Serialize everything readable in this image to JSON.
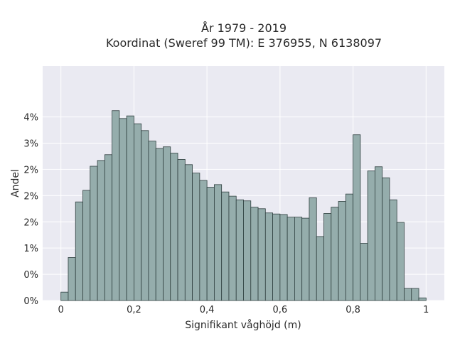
{
  "chart_data": {
    "type": "bar",
    "title_line1": "År 1979 - 2019",
    "title_line2": "Koordinat (Sweref 99 TM): E 376955, N 6138097",
    "xlabel": "Signifikant våghöjd (m)",
    "ylabel": "Andel",
    "xlim": [
      -0.05,
      1.05
    ],
    "ylim": [
      0,
      0.0447
    ],
    "x_ticks": [
      {
        "value": 0,
        "label": "0"
      },
      {
        "value": 0.2,
        "label": "0,2"
      },
      {
        "value": 0.4,
        "label": "0,4"
      },
      {
        "value": 0.6,
        "label": "0,6"
      },
      {
        "value": 0.8,
        "label": "0,8"
      },
      {
        "value": 1,
        "label": "1"
      }
    ],
    "y_ticks": [
      {
        "value": 0,
        "label": "0%"
      },
      {
        "value": 0.005,
        "label": "0%"
      },
      {
        "value": 0.01,
        "label": "1%"
      },
      {
        "value": 0.015,
        "label": "2%"
      },
      {
        "value": 0.02,
        "label": "2%"
      },
      {
        "value": 0.025,
        "label": "2%"
      },
      {
        "value": 0.03,
        "label": "3%"
      },
      {
        "value": 0.035,
        "label": "4%"
      }
    ],
    "bin_width": 0.02,
    "bin_centers": [
      0.01,
      0.03,
      0.05,
      0.07,
      0.09,
      0.11,
      0.13,
      0.15,
      0.17,
      0.19,
      0.21,
      0.23,
      0.25,
      0.27,
      0.29,
      0.31,
      0.33,
      0.35,
      0.37,
      0.39,
      0.41,
      0.43,
      0.45,
      0.47,
      0.49,
      0.51,
      0.53,
      0.55,
      0.57,
      0.59,
      0.61,
      0.63,
      0.65,
      0.67,
      0.69,
      0.71,
      0.73,
      0.75,
      0.77,
      0.79,
      0.81,
      0.83,
      0.85,
      0.87,
      0.89,
      0.91,
      0.93,
      0.95,
      0.97,
      0.99
    ],
    "values": [
      0.0016,
      0.0082,
      0.0188,
      0.021,
      0.0256,
      0.0267,
      0.0278,
      0.0362,
      0.0347,
      0.0352,
      0.0337,
      0.0324,
      0.0304,
      0.029,
      0.0293,
      0.0281,
      0.0269,
      0.0259,
      0.0243,
      0.0229,
      0.0216,
      0.0221,
      0.0207,
      0.0199,
      0.0192,
      0.019,
      0.0178,
      0.0175,
      0.0167,
      0.0165,
      0.0164,
      0.0159,
      0.0159,
      0.0157,
      0.0196,
      0.0122,
      0.0166,
      0.0178,
      0.0189,
      0.0203,
      0.0316,
      0.0109,
      0.0247,
      0.0255,
      0.0234,
      0.0192,
      0.0149,
      0.0023,
      0.0023,
      0.0005
    ],
    "bar_color": "#95adac",
    "edge_color": "#2f3f3f",
    "plot_background": "#eaeaf2",
    "grid": true,
    "grid_color": "#ffffff"
  }
}
